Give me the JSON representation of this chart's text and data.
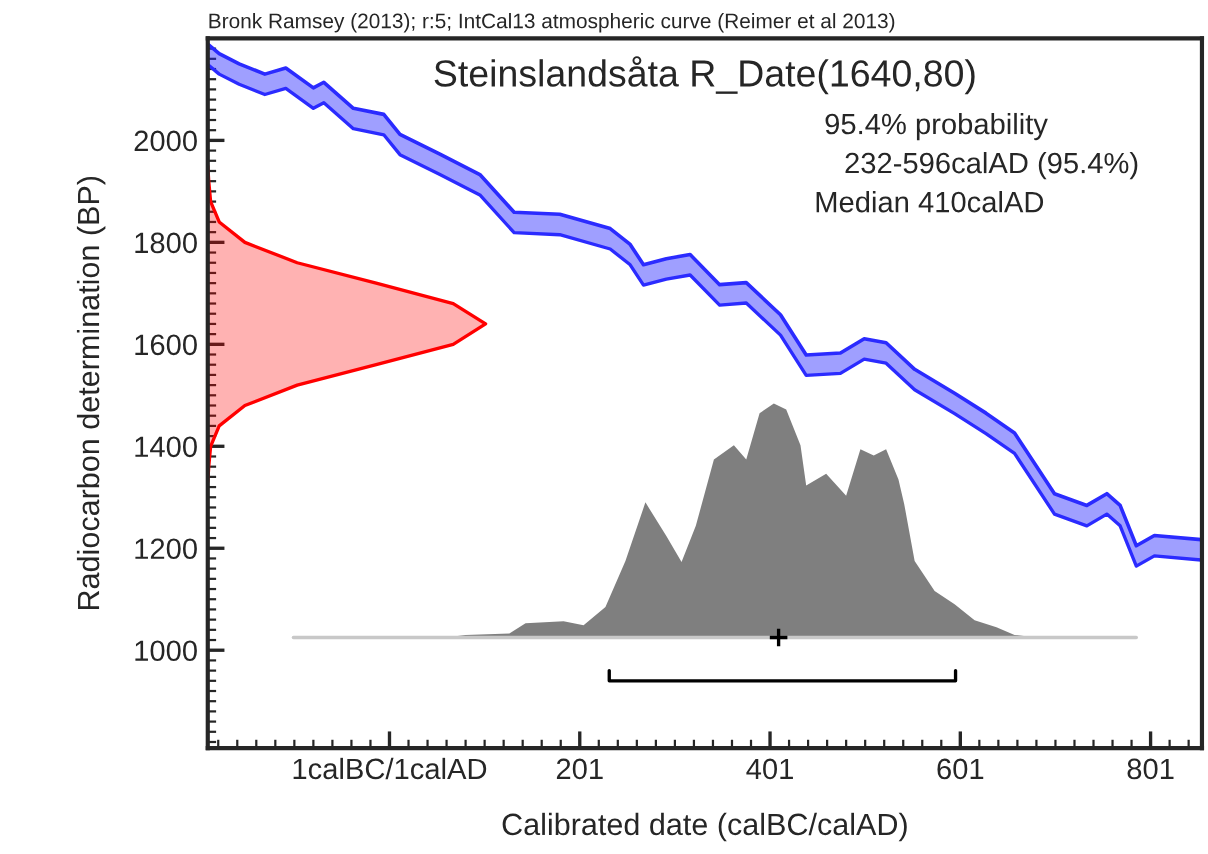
{
  "chart_data": {
    "type": "line",
    "title": "Steinslandsåta R_Date(1640,80)",
    "xlabel": "Calibrated date (calBC/calAD)",
    "ylabel": "Radiocarbon determination (BP)",
    "annotations": [
      "Bronk Ramsey (2013); r:5; IntCal13 atmospheric curve (Reimer et al 2013)",
      "95.4% probability",
      "232-596calAD (95.4%)",
      "Median 410calAD"
    ],
    "xlim": [
      -190,
      855
    ],
    "ylim": [
      808,
      2200
    ],
    "xticks": [
      {
        "value": 1,
        "label": "1calBC/1calAD"
      },
      201,
      401,
      601,
      801
    ],
    "yticks": [
      1000,
      1200,
      1400,
      1600,
      1800,
      2000
    ],
    "grid": false,
    "legend": false,
    "series": [
      {
        "color": "#2b2bff",
        "x": [
          -190,
          -178,
          -157,
          -130,
          -108,
          -79,
          -68,
          -37,
          -5,
          12,
          54,
          96,
          132,
          180,
          233,
          254,
          268,
          292,
          317,
          348,
          376,
          412,
          439,
          475,
          500,
          523,
          553,
          595,
          628,
          658,
          700,
          734,
          755,
          769,
          786,
          805,
          854
        ],
        "values": [
          2189,
          2170,
          2150,
          2130,
          2142,
          2103,
          2114,
          2063,
          2051,
          2012,
          1973,
          1933,
          1859,
          1855,
          1827,
          1796,
          1756,
          1768,
          1776,
          1717,
          1721,
          1658,
          1579,
          1583,
          1611,
          1603,
          1551,
          1504,
          1465,
          1426,
          1307,
          1284,
          1307,
          1284,
          1205,
          1225,
          1217
        ],
        "lower": [
          2149,
          2130,
          2110,
          2090,
          2102,
          2063,
          2074,
          2023,
          2011,
          1972,
          1933,
          1893,
          1819,
          1815,
          1787,
          1756,
          1716,
          1728,
          1736,
          1677,
          1681,
          1618,
          1539,
          1543,
          1571,
          1563,
          1511,
          1464,
          1425,
          1386,
          1267,
          1244,
          1267,
          1244,
          1165,
          1185,
          1177
        ],
        "upper": [
          2189,
          2170,
          2150,
          2130,
          2142,
          2103,
          2114,
          2063,
          2051,
          2012,
          1973,
          1933,
          1859,
          1855,
          1827,
          1796,
          1756,
          1768,
          1776,
          1717,
          1721,
          1658,
          1579,
          1583,
          1611,
          1603,
          1551,
          1504,
          1465,
          1426,
          1307,
          1284,
          1307,
          1284,
          1205,
          1225,
          1217
        ]
      },
      {
        "type": "line",
        "color": "#2b2bff",
        "x": [
          -190,
          -178,
          -157,
          -130,
          -108,
          -79,
          -68,
          -37,
          -5,
          12,
          54,
          96,
          132,
          180,
          233,
          254,
          268,
          292,
          317,
          348,
          376,
          412,
          439,
          475,
          500,
          523,
          553,
          595,
          628,
          658,
          700,
          734,
          755,
          769,
          786,
          805,
          854
        ],
        "values": [
          2149,
          2130,
          2110,
          2090,
          2102,
          2063,
          2074,
          2023,
          2011,
          1972,
          1933,
          1893,
          1819,
          1815,
          1787,
          1756,
          1716,
          1728,
          1736,
          1677,
          1681,
          1618,
          1539,
          1543,
          1571,
          1563,
          1511,
          1464,
          1425,
          1386,
          1267,
          1244,
          1267,
          1244,
          1165,
          1185,
          1177
        ]
      },
      {
        "type": "area",
        "color": "#ff0000",
        "x": [
          -190,
          -189,
          -187,
          -178,
          -151,
          -96,
          -13,
          68,
          102,
          68,
          -13,
          -96,
          -151,
          -178,
          -187,
          -189,
          -190
        ],
        "values": [
          1950,
          1920,
          1880,
          1840,
          1800,
          1760,
          1720,
          1680,
          1640,
          1600,
          1560,
          1520,
          1480,
          1440,
          1400,
          1360,
          1330
        ]
      },
      {
        "type": "line",
        "color": "#c8c8c8",
        "x": [
          -100,
          786
        ],
        "values": [
          1025,
          1025
        ]
      },
      {
        "type": "area",
        "color": "#7f7f7f",
        "x": [
          60,
          81,
          127,
          144,
          184,
          205,
          228,
          249,
          270,
          292,
          308,
          323,
          342,
          363,
          376,
          390,
          405,
          418,
          433,
          439,
          460,
          481,
          496,
          510,
          523,
          536,
          542,
          553,
          574,
          595,
          616,
          639,
          658,
          680
        ],
        "values": [
          1025,
          1030,
          1033,
          1053,
          1057,
          1049,
          1085,
          1175,
          1290,
          1224,
          1173,
          1244,
          1374,
          1402,
          1374,
          1465,
          1484,
          1472,
          1402,
          1323,
          1346,
          1303,
          1394,
          1382,
          1394,
          1335,
          1287,
          1175,
          1116,
          1090,
          1059,
          1045,
          1030,
          1025
        ]
      },
      {
        "type": "line",
        "color": "#000000",
        "x": [
          232,
          232,
          596,
          596
        ],
        "values": [
          960,
          940,
          940,
          960
        ]
      },
      {
        "type": "scatter",
        "color": "#000000",
        "marker": "cross",
        "x": [
          410
        ],
        "values": [
          1025
        ]
      }
    ]
  }
}
